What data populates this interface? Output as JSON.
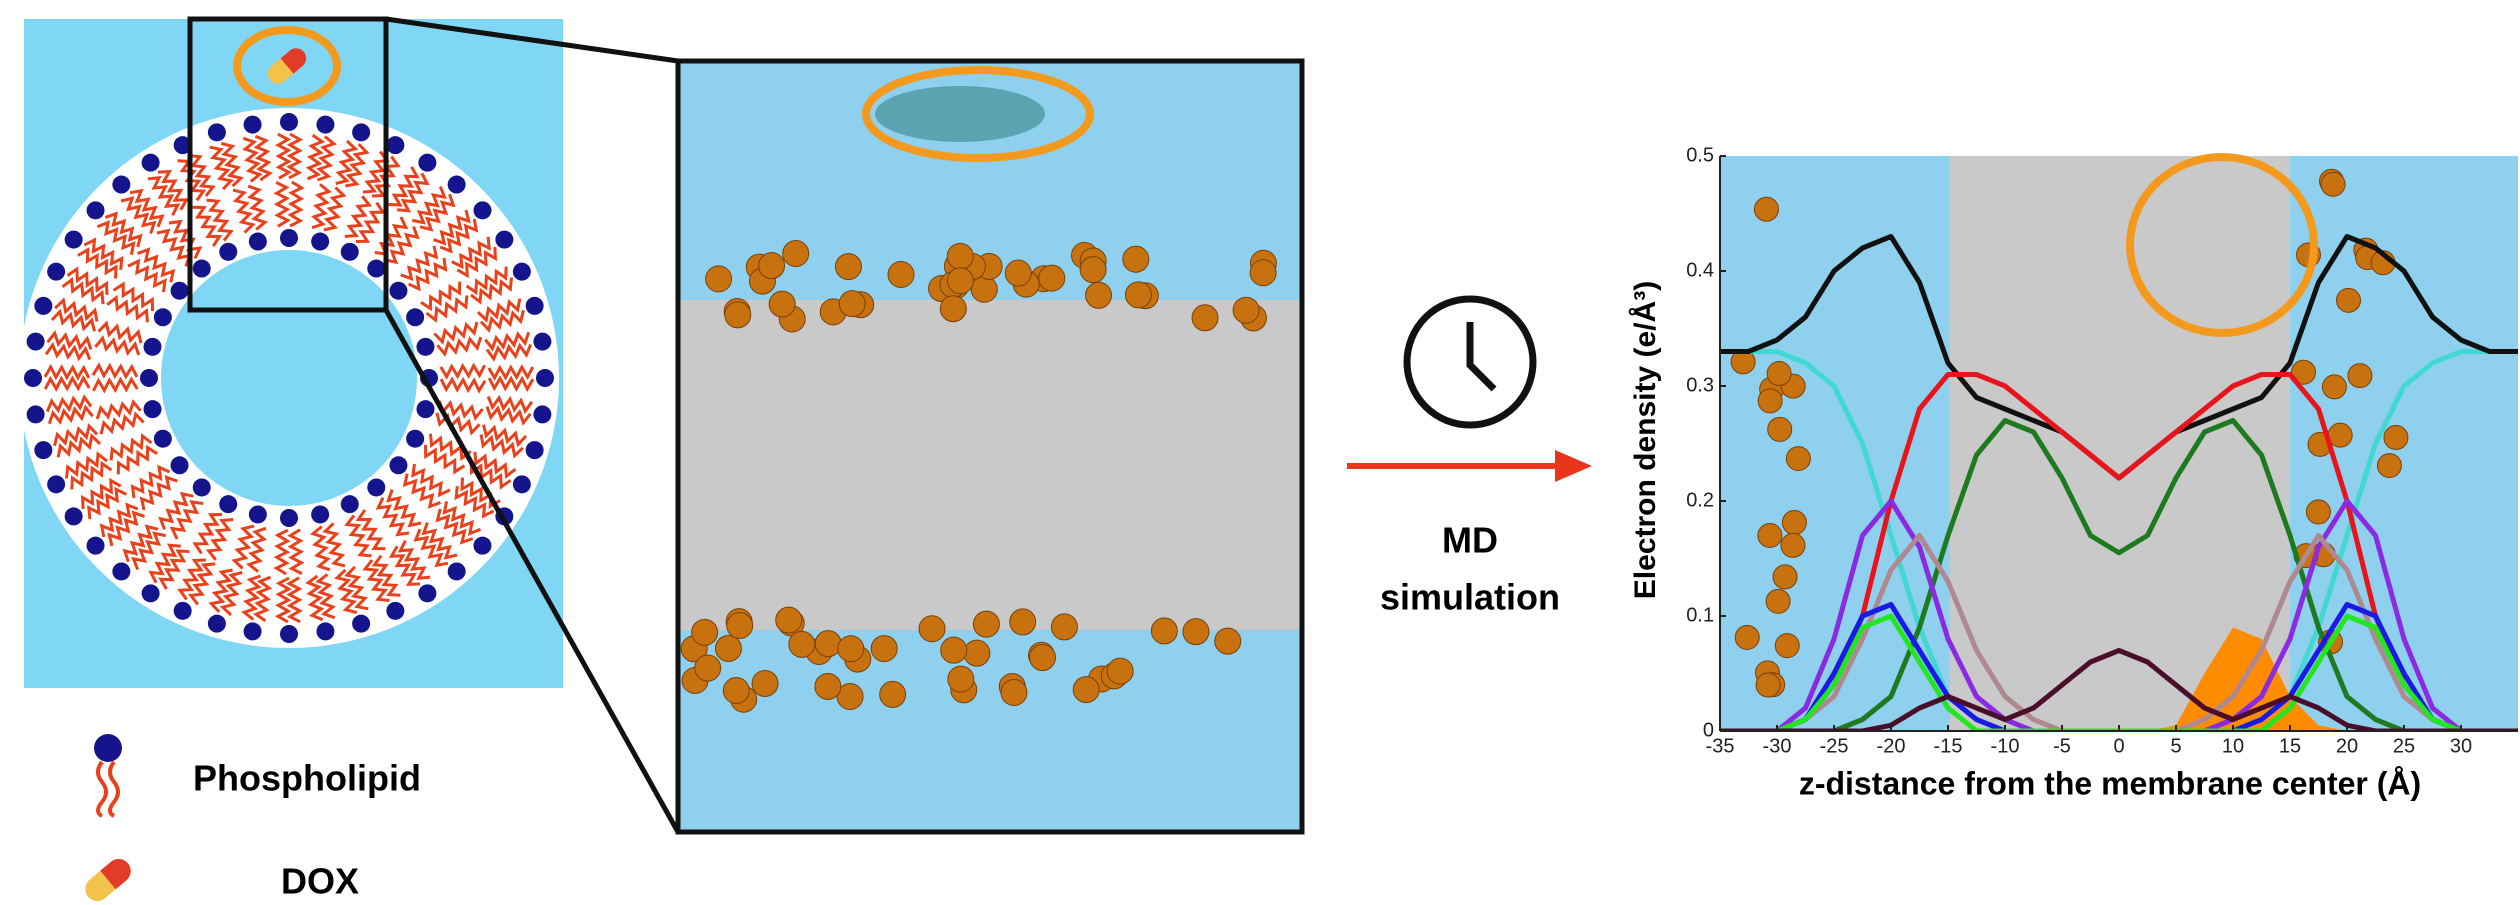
{
  "figure": {
    "legend": [
      "Phospholipid",
      "DOX"
    ],
    "arrow_label": [
      "MD",
      "simulation"
    ]
  },
  "chart_data": {
    "type": "line",
    "y_label": "Electron density (e/Å³)",
    "x_label": "z-distance from the membrane center (Å)",
    "x": [
      -35,
      -32.5,
      -30,
      -27.5,
      -25,
      -22.5,
      -20,
      -17.5,
      -15,
      -12.5,
      -10,
      -7.5,
      -5,
      -2.5,
      0,
      2.5,
      5,
      7.5,
      10,
      12.5,
      15,
      17.5,
      20,
      22.5,
      25,
      27.5,
      30,
      32.5,
      35
    ],
    "xlim": [
      -35,
      35
    ],
    "xticks": [
      -35,
      -30,
      -25,
      -20,
      -15,
      -10,
      -5,
      0,
      5,
      10,
      15,
      20,
      25,
      30
    ],
    "ylim": [
      0,
      0.5
    ],
    "yticks": [
      0,
      0.1,
      0.2,
      0.3,
      0.4,
      0.5
    ],
    "series": [
      {
        "color": "#ff8c00",
        "style": "area",
        "values": [
          0,
          0,
          0,
          0,
          0,
          0,
          0,
          0,
          0,
          0,
          0,
          0,
          0,
          0,
          0,
          0,
          0.005,
          0.05,
          0.09,
          0.08,
          0.03,
          0.005,
          0,
          0,
          0,
          0,
          0,
          0,
          0
        ]
      },
      {
        "color": "#40d8d0",
        "values": [
          0.33,
          0.33,
          0.33,
          0.32,
          0.3,
          0.25,
          0.17,
          0.09,
          0.03,
          0.01,
          0,
          0,
          0,
          0,
          0,
          0,
          0,
          0,
          0,
          0.01,
          0.03,
          0.09,
          0.17,
          0.25,
          0.3,
          0.32,
          0.33,
          0.33,
          0.33
        ]
      },
      {
        "color": "#111111",
        "values": [
          0.33,
          0.33,
          0.34,
          0.36,
          0.4,
          0.42,
          0.43,
          0.39,
          0.32,
          0.29,
          0.28,
          0.27,
          0.26,
          0.24,
          0.22,
          0.24,
          0.26,
          0.27,
          0.28,
          0.29,
          0.32,
          0.39,
          0.43,
          0.42,
          0.4,
          0.36,
          0.34,
          0.33,
          0.33
        ]
      },
      {
        "color": "#e8141b",
        "values": [
          0,
          0,
          0,
          0.01,
          0.04,
          0.1,
          0.2,
          0.28,
          0.31,
          0.31,
          0.3,
          0.28,
          0.26,
          0.24,
          0.22,
          0.24,
          0.26,
          0.28,
          0.3,
          0.31,
          0.31,
          0.28,
          0.2,
          0.1,
          0.04,
          0.01,
          0,
          0,
          0
        ]
      },
      {
        "color": "#1e7a1e",
        "values": [
          0,
          0,
          0,
          0,
          0,
          0.01,
          0.03,
          0.09,
          0.17,
          0.24,
          0.27,
          0.26,
          0.22,
          0.17,
          0.155,
          0.17,
          0.22,
          0.26,
          0.27,
          0.24,
          0.17,
          0.09,
          0.03,
          0.01,
          0,
          0,
          0,
          0,
          0
        ]
      },
      {
        "color": "#8a2be2",
        "values": [
          0,
          0,
          0,
          0.02,
          0.08,
          0.17,
          0.2,
          0.16,
          0.08,
          0.03,
          0.01,
          0,
          0,
          0,
          0,
          0,
          0,
          0,
          0.01,
          0.03,
          0.08,
          0.16,
          0.2,
          0.17,
          0.08,
          0.02,
          0,
          0,
          0
        ]
      },
      {
        "color": "#b08890",
        "values": [
          0,
          0,
          0,
          0.01,
          0.03,
          0.08,
          0.14,
          0.17,
          0.13,
          0.07,
          0.03,
          0.01,
          0,
          0,
          0,
          0,
          0,
          0.01,
          0.03,
          0.07,
          0.13,
          0.17,
          0.14,
          0.08,
          0.03,
          0.01,
          0,
          0,
          0
        ]
      },
      {
        "color": "#1a1ae6",
        "values": [
          0,
          0,
          0,
          0.01,
          0.05,
          0.1,
          0.11,
          0.07,
          0.03,
          0.01,
          0,
          0,
          0,
          0,
          0,
          0,
          0,
          0,
          0,
          0.01,
          0.03,
          0.07,
          0.11,
          0.1,
          0.05,
          0.01,
          0,
          0,
          0
        ]
      },
      {
        "color": "#22e622",
        "values": [
          0,
          0,
          0,
          0.01,
          0.04,
          0.09,
          0.1,
          0.06,
          0.02,
          0,
          0,
          0,
          0,
          0,
          0,
          0,
          0,
          0,
          0,
          0,
          0.02,
          0.06,
          0.1,
          0.09,
          0.04,
          0.01,
          0,
          0,
          0
        ]
      },
      {
        "color": "#4a0e2a",
        "values": [
          0,
          0,
          0,
          0,
          0,
          0,
          0.005,
          0.02,
          0.03,
          0.02,
          0.01,
          0.02,
          0.04,
          0.06,
          0.07,
          0.06,
          0.04,
          0.02,
          0.01,
          0.02,
          0.03,
          0.02,
          0.005,
          0,
          0,
          0,
          0,
          0,
          0
        ]
      }
    ]
  }
}
